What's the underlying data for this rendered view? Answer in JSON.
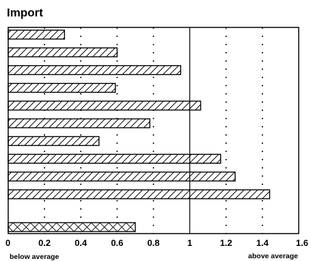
{
  "chart_data": {
    "type": "bar",
    "orientation": "horizontal",
    "title": "Import",
    "xlabel": "",
    "ylabel": "",
    "xlim": [
      0,
      1.6
    ],
    "x_ticks": [
      "0",
      "0.2",
      "0.4",
      "0.6",
      "0.8",
      "1",
      "1.2",
      "1.4",
      "1.6"
    ],
    "grid": "vertical dotted",
    "reference_line": 1,
    "values": [
      0.31,
      0.6,
      0.95,
      0.59,
      1.06,
      0.78,
      0.5,
      1.17,
      1.25,
      1.44
    ],
    "summary_value": 0.7,
    "annotations": {
      "left": "below average",
      "right": "above average"
    }
  }
}
